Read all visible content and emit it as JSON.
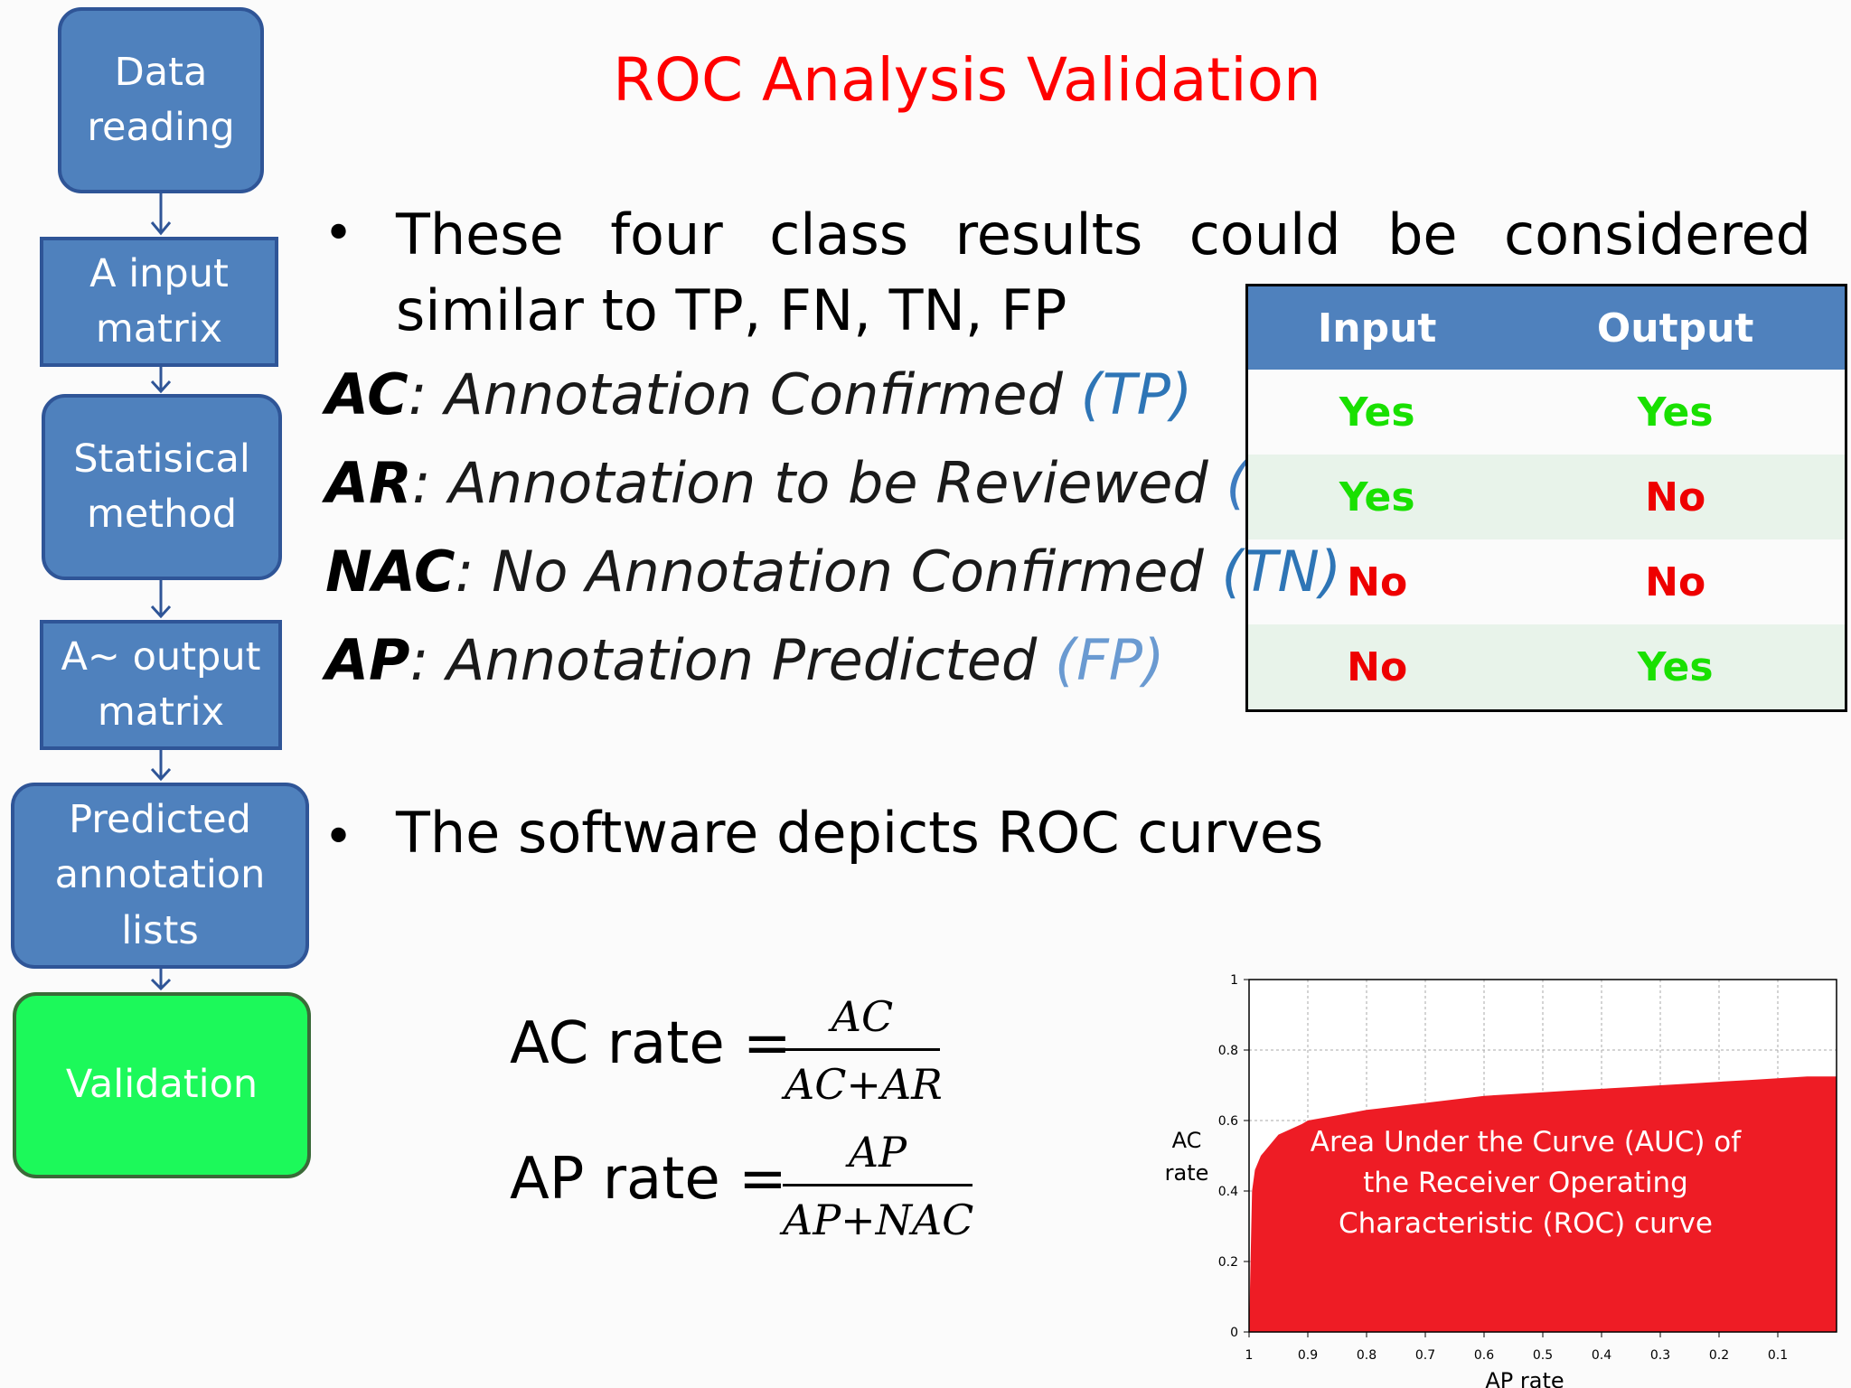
{
  "title": "ROC Analysis Validation",
  "flow": [
    "Data\nreading",
    "A input\nmatrix",
    "Statisical\nmethod",
    "A~ output\nmatrix",
    "Predicted\nannotation\nlists",
    "Validation"
  ],
  "bullet1": {
    "mark": "•",
    "text": "These four class results could be considered similar to TP, FN, TN, FP"
  },
  "definitions": [
    {
      "abbr": "AC",
      "text": ": Annotation Confirmed ",
      "tag": "(TP)"
    },
    {
      "abbr": "AR",
      "text": ": Annotation to be Reviewed ",
      "tag": "(FN)"
    },
    {
      "abbr": "NAC",
      "text": ": No Annotation Confirmed ",
      "tag": "(TN)"
    },
    {
      "abbr": "AP",
      "text": ": Annotation Predicted ",
      "tag": "(FP)"
    }
  ],
  "table": {
    "headers": [
      "Input",
      "Output"
    ],
    "rows": [
      [
        "Yes",
        "Yes"
      ],
      [
        "Yes",
        "No"
      ],
      [
        "No",
        "No"
      ],
      [
        "No",
        "Yes"
      ]
    ]
  },
  "bullet2": {
    "mark": "•",
    "text": "The software depicts ROC curves"
  },
  "formulas": [
    {
      "lhs": "AC rate",
      "eq": "=",
      "num": "AC",
      "den": "AC+AR"
    },
    {
      "lhs": "AP rate",
      "eq": "=",
      "num": "AP",
      "den": "AP+NAC"
    }
  ],
  "chart_data": {
    "type": "area",
    "xlabel": "AP rate",
    "ylabel": "AC rate",
    "x_ticks": [
      "1",
      "0.9",
      "0.8",
      "0.7",
      "0.6",
      "0.5",
      "0.4",
      "0.3",
      "0.2",
      "0.1"
    ],
    "y_ticks": [
      "0",
      "0.2",
      "0.4",
      "0.6",
      "0.8",
      "1"
    ],
    "xlim": [
      1,
      0
    ],
    "ylim": [
      0,
      1
    ],
    "grid": true,
    "fill_color": "#ee1c25",
    "annotation": "Area Under the Curve (AUC) of\nthe Receiver Operating\nCharacteristic (ROC) curve",
    "x": [
      1.0,
      0.995,
      0.99,
      0.98,
      0.97,
      0.96,
      0.95,
      0.93,
      0.91,
      0.9,
      0.85,
      0.8,
      0.75,
      0.7,
      0.65,
      0.6,
      0.55,
      0.5,
      0.45,
      0.4,
      0.35,
      0.3,
      0.25,
      0.2,
      0.15,
      0.1,
      0.05,
      0.0
    ],
    "y": [
      0.0,
      0.4,
      0.46,
      0.5,
      0.52,
      0.54,
      0.56,
      0.575,
      0.59,
      0.6,
      0.615,
      0.63,
      0.64,
      0.65,
      0.66,
      0.67,
      0.675,
      0.68,
      0.685,
      0.69,
      0.695,
      0.7,
      0.705,
      0.71,
      0.715,
      0.72,
      0.725,
      0.725
    ]
  }
}
